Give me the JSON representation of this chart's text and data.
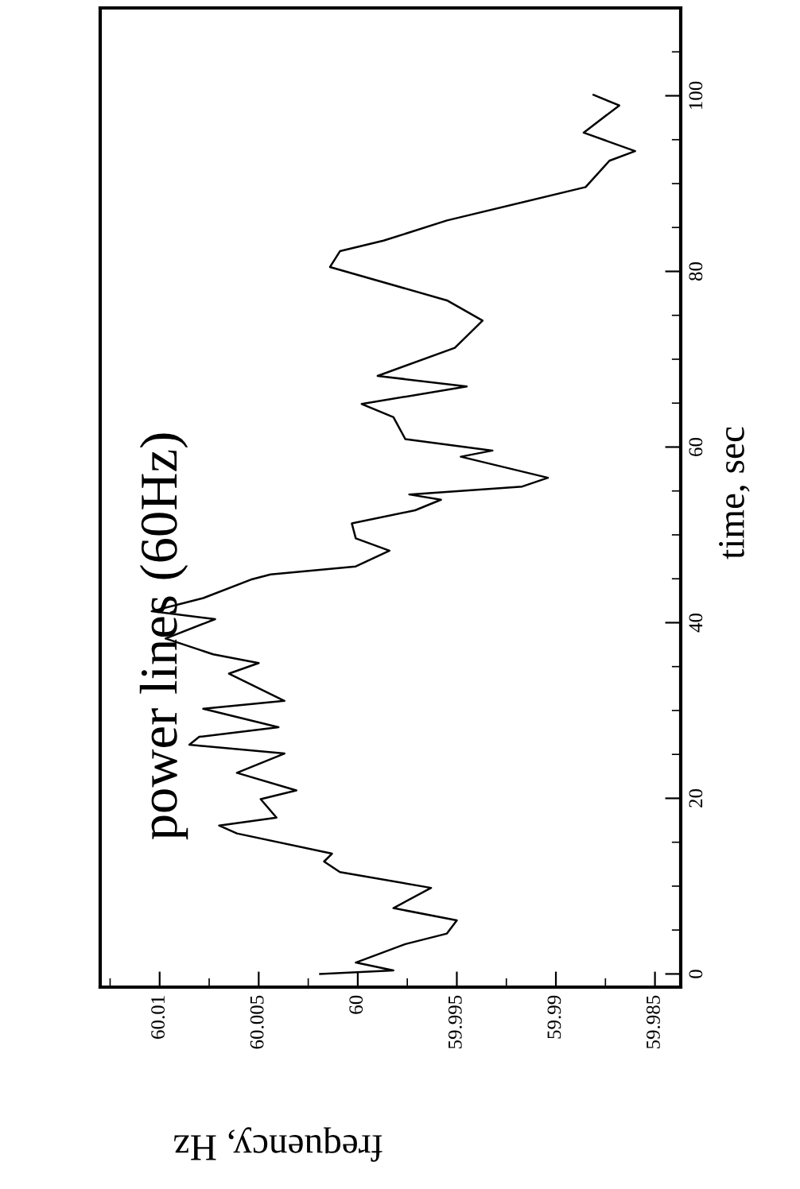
{
  "chart_data": {
    "type": "line",
    "title": "power lines (60Hz)",
    "xlabel": "frequency, Hz",
    "ylabel": "time, sec",
    "x": [
      60.0019,
      59.9982,
      60.0001,
      59.9976,
      59.9955,
      59.995,
      59.9982,
      59.9963,
      60.0009,
      60.0017,
      60.0013,
      60.0061,
      60.007,
      60.0041,
      60.0049,
      60.0031,
      60.0061,
      60.0037,
      60.0085,
      60.008,
      60.004,
      60.0078,
      60.0037,
      60.0065,
      60.005,
      60.0073,
      60.0097,
      60.0072,
      60.0104,
      60.0078,
      60.0054,
      60.0044,
      60.0001,
      59.9984,
      60.0001,
      60.0003,
      59.9971,
      59.9958,
      59.9974,
      59.9917,
      59.9904,
      59.9948,
      59.9932,
      59.9976,
      59.9982,
      59.9998,
      59.9945,
      59.999,
      59.9951,
      59.9937,
      59.9955,
      60.0014,
      60.0009,
      59.9987,
      59.9955,
      59.9885,
      59.9873,
      59.986,
      59.9886,
      59.9868,
      59.9881
    ],
    "series": [
      {
        "color": "#000000",
        "values": [
          0,
          0.4,
          1.3,
          3.4,
          4.6,
          6.1,
          7.5,
          9.8,
          11.6,
          12.8,
          13.7,
          16.0,
          16.9,
          17.8,
          19.9,
          20.9,
          22.9,
          25.1,
          26.1,
          27.0,
          28.1,
          30.2,
          31.1,
          34.2,
          35.4,
          36.4,
          38.2,
          40.4,
          41.3,
          42.8,
          44.9,
          45.5,
          46.4,
          48.2,
          49.6,
          51.3,
          52.8,
          54.0,
          54.6,
          55.5,
          56.5,
          58.9,
          59.6,
          60.9,
          63.4,
          64.9,
          66.9,
          68.1,
          71.3,
          74.4,
          76.7,
          80.5,
          82.3,
          83.5,
          85.8,
          89.6,
          92.6,
          93.7,
          95.8,
          98.9,
          100.1
        ]
      }
    ],
    "xlim": [
      60.013,
      59.9837
    ],
    "xticks": [
      60.01,
      60.005,
      60,
      59.995,
      59.99,
      59.985
    ],
    "ylim": [
      -1.5,
      110
    ],
    "yticks": [
      0,
      20,
      40,
      60,
      80,
      100
    ],
    "marker": "none",
    "line_style": "solid"
  }
}
